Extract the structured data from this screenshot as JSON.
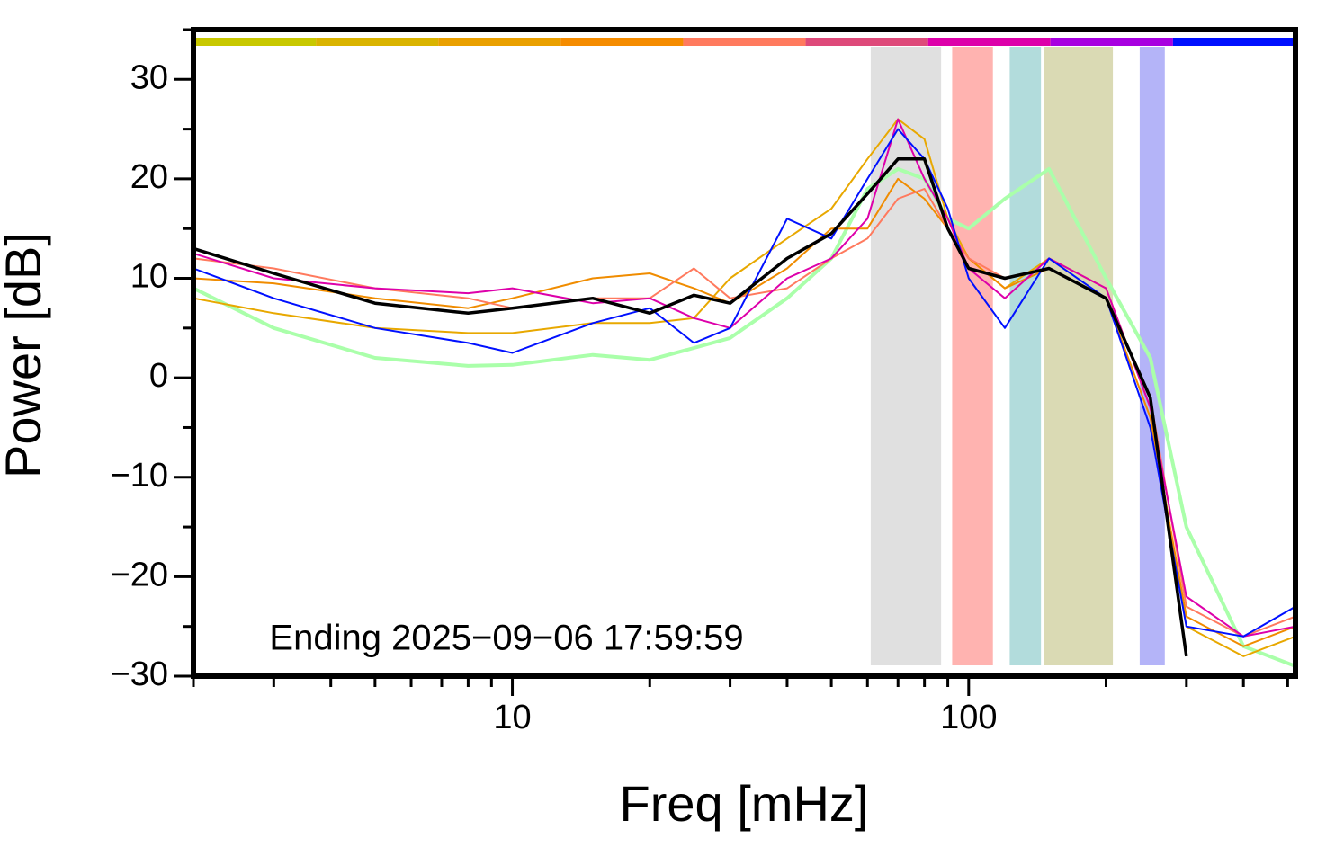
{
  "chart_data": {
    "type": "line",
    "xlabel": "Freq [mHz]",
    "ylabel": "Power [dB]",
    "annotation": "Ending 2025−09−06 17:59:59",
    "log_x": true,
    "xlim": [
      2,
      520
    ],
    "ylim": [
      -30,
      35
    ],
    "xticks": [
      10,
      100
    ],
    "x_minor_ticks": [
      2,
      3,
      4,
      5,
      6,
      7,
      8,
      9,
      20,
      30,
      40,
      50,
      60,
      70,
      80,
      90,
      200,
      300,
      400,
      500
    ],
    "yticks": [
      {
        "value": -30,
        "label": "−30"
      },
      {
        "value": -20,
        "label": "−20"
      },
      {
        "value": -10,
        "label": "−10"
      },
      0,
      10,
      20,
      30
    ],
    "y_minor_ticks": [
      -25,
      -15,
      -5,
      5,
      15,
      25,
      35
    ],
    "color_bar": [
      "#c8c800",
      "#dab400",
      "#eaa000",
      "#f58c00",
      "#ff7a5e",
      "#de4a7a",
      "#dd00aa",
      "#a800e0",
      "#0010ff"
    ],
    "bands": [
      {
        "range": [
          61,
          87
        ],
        "color": "#e0e0e0"
      },
      {
        "range": [
          92,
          113
        ],
        "color": "#ffb3b0"
      },
      {
        "range": [
          123,
          144
        ],
        "color": "#b2dcdc"
      },
      {
        "range": [
          146,
          207
        ],
        "color": "#dadab4"
      },
      {
        "range": [
          237,
          269
        ],
        "color": "#b4b4f8"
      }
    ],
    "x": [
      2,
      3,
      5,
      8,
      10,
      15,
      20,
      25,
      30,
      40,
      50,
      60,
      70,
      80,
      90,
      100,
      120,
      150,
      200,
      250,
      300,
      400,
      520
    ],
    "series": [
      {
        "color": "#aaffaa",
        "width": 4,
        "values": [
          9,
          5,
          2,
          1.2,
          1.3,
          2.3,
          1.8,
          3,
          4,
          8,
          12,
          19,
          21,
          20,
          16,
          15,
          18,
          21,
          10,
          2,
          -15,
          -27,
          -29
        ]
      },
      {
        "color": "#e8a800",
        "width": 2,
        "values": [
          8,
          6.5,
          5,
          4.5,
          4.5,
          5.5,
          5.5,
          6,
          10,
          14,
          17,
          22,
          26,
          24,
          16,
          12,
          9,
          12,
          9,
          -3,
          -25,
          -28,
          -26
        ]
      },
      {
        "color": "#f08c00",
        "width": 2,
        "values": [
          10,
          9.5,
          8,
          7,
          8,
          10,
          10.5,
          9,
          7.5,
          11,
          15,
          15,
          20,
          18,
          15,
          12,
          9,
          11,
          8,
          -4,
          -24,
          -27,
          -25
        ]
      },
      {
        "color": "#ff7a5e",
        "width": 2,
        "values": [
          12,
          11,
          9,
          8,
          7,
          8,
          8,
          11,
          8,
          9,
          12,
          14,
          18,
          19,
          15,
          12,
          10,
          11,
          8,
          -2,
          -23,
          -26,
          -24
        ]
      },
      {
        "color": "#dd00aa",
        "width": 2,
        "values": [
          12.5,
          10,
          9,
          8.5,
          9,
          7.5,
          8,
          6,
          5,
          10,
          12,
          16,
          26,
          20,
          16,
          11,
          8,
          12,
          9,
          -3,
          -22,
          -26,
          -25
        ]
      },
      {
        "color": "#0010ff",
        "width": 2,
        "values": [
          11,
          8,
          5,
          3.5,
          2.5,
          5.5,
          7,
          3.5,
          5,
          16,
          14,
          20,
          25,
          22,
          17,
          10,
          5,
          12,
          8,
          -5,
          -25,
          -26,
          -23
        ]
      },
      {
        "color": "#000000",
        "width": 3.5,
        "values": [
          13,
          10.5,
          7.5,
          6.5,
          7,
          8,
          6.5,
          8.3,
          7.5,
          12,
          14.5,
          18.5,
          22,
          22,
          15,
          11,
          10,
          11,
          8,
          -2,
          -28,
          null,
          null
        ]
      }
    ]
  }
}
